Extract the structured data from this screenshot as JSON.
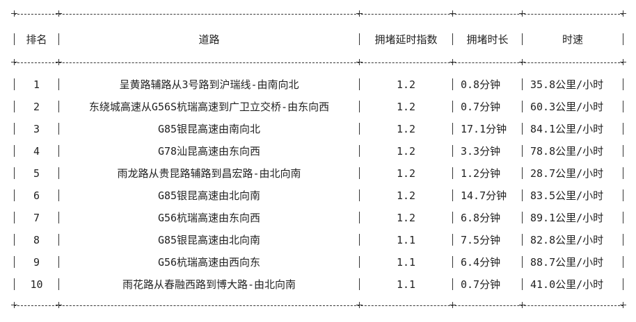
{
  "table": {
    "headers": [
      "排名",
      "道路",
      "拥堵延时指数",
      "拥堵时长",
      "时速"
    ],
    "rows": [
      {
        "rank": "1",
        "road": "呈黄路辅路从3号路到沪瑞线-由南向北",
        "index": "1.2",
        "duration": "0.8分钟",
        "speed": "35.8公里/小时"
      },
      {
        "rank": "2",
        "road": "东绕城高速从G56S杭瑞高速到广卫立交桥-由东向西",
        "index": "1.2",
        "duration": "0.7分钟",
        "speed": "60.3公里/小时"
      },
      {
        "rank": "3",
        "road": "G85银昆高速由南向北",
        "index": "1.2",
        "duration": "17.1分钟",
        "speed": "84.1公里/小时"
      },
      {
        "rank": "4",
        "road": "G78汕昆高速由东向西",
        "index": "1.2",
        "duration": "3.3分钟",
        "speed": "78.8公里/小时"
      },
      {
        "rank": "5",
        "road": "雨龙路从贵昆路辅路到昌宏路-由北向南",
        "index": "1.2",
        "duration": "1.2分钟",
        "speed": "28.7公里/小时"
      },
      {
        "rank": "6",
        "road": "G85银昆高速由北向南",
        "index": "1.2",
        "duration": "14.7分钟",
        "speed": "83.5公里/小时"
      },
      {
        "rank": "7",
        "road": "G56杭瑞高速由东向西",
        "index": "1.2",
        "duration": "6.8分钟",
        "speed": "89.1公里/小时"
      },
      {
        "rank": "8",
        "road": "G85银昆高速由北向南",
        "index": "1.1",
        "duration": "7.5分钟",
        "speed": "82.8公里/小时"
      },
      {
        "rank": "9",
        "road": "G56杭瑞高速由西向东",
        "index": "1.1",
        "duration": "6.4分钟",
        "speed": "88.7公里/小时"
      },
      {
        "rank": "10",
        "road": "雨花路从春融西路到博大路-由北向南",
        "index": "1.1",
        "duration": "0.7分钟",
        "speed": "41.0公里/小时"
      }
    ]
  }
}
